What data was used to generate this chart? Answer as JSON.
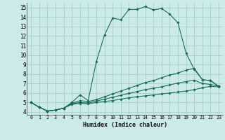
{
  "xlabel": "Humidex (Indice chaleur)",
  "bg_color": "#cceae7",
  "grid_color": "#aad4d0",
  "line_color": "#1a6b5e",
  "xlim": [
    -0.5,
    23.5
  ],
  "ylim": [
    3.7,
    15.5
  ],
  "xticks": [
    0,
    1,
    2,
    3,
    4,
    5,
    6,
    7,
    8,
    9,
    10,
    11,
    12,
    13,
    14,
    15,
    16,
    17,
    18,
    19,
    20,
    21,
    22,
    23
  ],
  "yticks": [
    4,
    5,
    6,
    7,
    8,
    9,
    10,
    11,
    12,
    13,
    14,
    15
  ],
  "series": [
    {
      "x": [
        0,
        1,
        2,
        3,
        4,
        5,
        6,
        7,
        8,
        9,
        10,
        11,
        12,
        13,
        14,
        15,
        16,
        17,
        18,
        19,
        20,
        21,
        22,
        23
      ],
      "y": [
        5.0,
        4.5,
        4.1,
        4.2,
        4.4,
        5.0,
        5.8,
        5.2,
        9.3,
        12.1,
        13.9,
        13.7,
        14.8,
        14.8,
        15.1,
        14.75,
        14.9,
        14.3,
        13.4,
        10.2,
        8.5,
        7.4,
        7.3,
        6.7
      ]
    },
    {
      "x": [
        0,
        1,
        2,
        3,
        4,
        5,
        6,
        7,
        8,
        9,
        10,
        11,
        12,
        13,
        14,
        15,
        16,
        17,
        18,
        19,
        20,
        21,
        22,
        23
      ],
      "y": [
        5.0,
        4.5,
        4.1,
        4.2,
        4.4,
        4.9,
        5.2,
        5.1,
        5.3,
        5.6,
        5.9,
        6.2,
        6.5,
        6.8,
        7.1,
        7.3,
        7.6,
        7.9,
        8.1,
        8.4,
        8.6,
        7.4,
        7.3,
        6.7
      ]
    },
    {
      "x": [
        0,
        1,
        2,
        3,
        4,
        5,
        6,
        7,
        8,
        9,
        10,
        11,
        12,
        13,
        14,
        15,
        16,
        17,
        18,
        19,
        20,
        21,
        22,
        23
      ],
      "y": [
        5.0,
        4.5,
        4.1,
        4.2,
        4.4,
        4.85,
        5.0,
        4.95,
        5.15,
        5.35,
        5.55,
        5.75,
        5.95,
        6.15,
        6.35,
        6.5,
        6.65,
        6.85,
        7.05,
        7.2,
        7.35,
        7.0,
        6.9,
        6.7
      ]
    },
    {
      "x": [
        0,
        1,
        2,
        3,
        4,
        5,
        6,
        7,
        8,
        9,
        10,
        11,
        12,
        13,
        14,
        15,
        16,
        17,
        18,
        19,
        20,
        21,
        22,
        23
      ],
      "y": [
        5.0,
        4.5,
        4.1,
        4.2,
        4.4,
        4.8,
        4.9,
        4.85,
        5.0,
        5.1,
        5.2,
        5.35,
        5.5,
        5.6,
        5.7,
        5.8,
        5.9,
        6.0,
        6.1,
        6.2,
        6.35,
        6.55,
        6.7,
        6.65
      ]
    }
  ]
}
